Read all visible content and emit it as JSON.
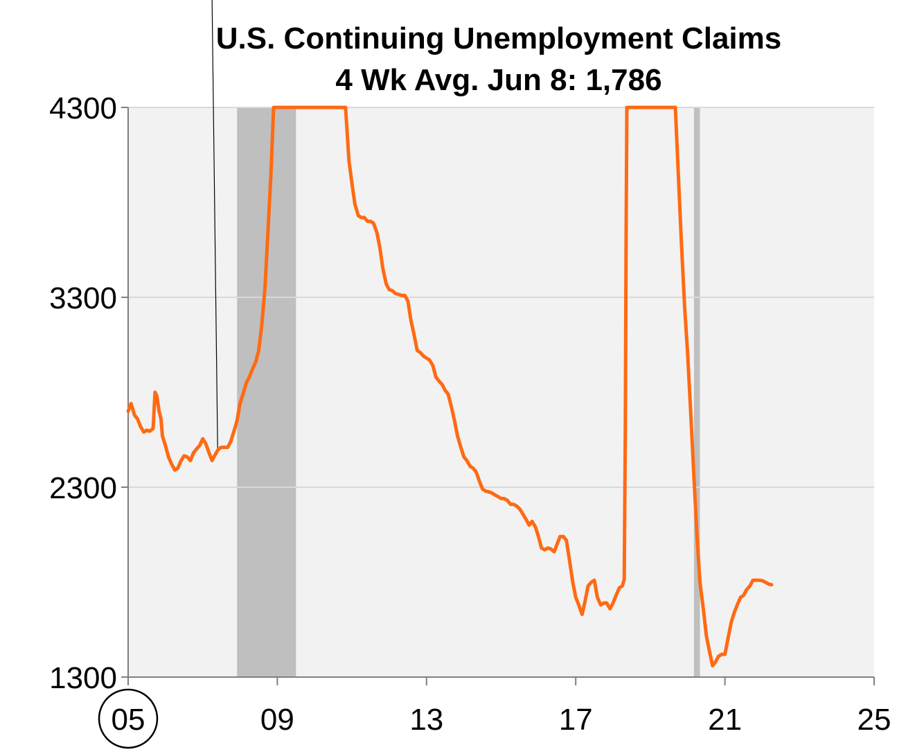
{
  "chart_data": {
    "type": "line",
    "title": "U.S. Continuing Unemployment Claims",
    "subtitle": "4 Wk Avg. Jun 8: 1,786",
    "xlabel": "",
    "ylabel": "",
    "xlim": [
      2005,
      2025
    ],
    "ylim": [
      1300,
      4300
    ],
    "x_ticks": [
      {
        "value": 2005,
        "label": "05",
        "circled": true
      },
      {
        "value": 2009,
        "label": "09"
      },
      {
        "value": 2013,
        "label": "13"
      },
      {
        "value": 2017,
        "label": "17"
      },
      {
        "value": 2021,
        "label": "21"
      },
      {
        "value": 2025,
        "label": "25"
      }
    ],
    "y_ticks": [
      {
        "value": 1300,
        "label": "1300"
      },
      {
        "value": 2300,
        "label": "2300"
      },
      {
        "value": 3300,
        "label": "3300"
      },
      {
        "value": 4300,
        "label": "4300"
      }
    ],
    "grid": true,
    "colors": {
      "line": "#ff6a13",
      "plot_background": "#f2f2f2",
      "recession": "#bfbfbf",
      "grid": "#d9d9d9",
      "axis": "#7f7f7f"
    },
    "recessions": [
      {
        "start": 2007.92,
        "end": 2009.5
      },
      {
        "start": 2020.17,
        "end": 2020.33
      }
    ],
    "annotation_line": {
      "x_top": 2007.25,
      "y_top": 4300,
      "x_bottom": 2007.4,
      "y_bottom": 2500
    },
    "series": [
      {
        "points": [
          [
            2005.0,
            2700
          ],
          [
            2005.08,
            2740
          ],
          [
            2005.17,
            2680
          ],
          [
            2005.25,
            2660
          ],
          [
            2005.33,
            2620
          ],
          [
            2005.42,
            2590
          ],
          [
            2005.5,
            2600
          ],
          [
            2005.58,
            2595
          ],
          [
            2005.67,
            2610
          ],
          [
            2005.72,
            2800
          ],
          [
            2005.77,
            2780
          ],
          [
            2005.83,
            2700
          ],
          [
            2005.88,
            2660
          ],
          [
            2005.92,
            2570
          ],
          [
            2006.0,
            2520
          ],
          [
            2006.08,
            2460
          ],
          [
            2006.17,
            2420
          ],
          [
            2006.25,
            2390
          ],
          [
            2006.33,
            2400
          ],
          [
            2006.42,
            2440
          ],
          [
            2006.5,
            2465
          ],
          [
            2006.58,
            2460
          ],
          [
            2006.67,
            2440
          ],
          [
            2006.75,
            2480
          ],
          [
            2006.83,
            2500
          ],
          [
            2006.92,
            2520
          ],
          [
            2007.0,
            2555
          ],
          [
            2007.08,
            2530
          ],
          [
            2007.17,
            2480
          ],
          [
            2007.25,
            2440
          ],
          [
            2007.33,
            2470
          ],
          [
            2007.42,
            2500
          ],
          [
            2007.5,
            2510
          ],
          [
            2007.58,
            2510
          ],
          [
            2007.67,
            2510
          ],
          [
            2007.75,
            2540
          ],
          [
            2007.83,
            2590
          ],
          [
            2007.92,
            2650
          ],
          [
            2008.0,
            2740
          ],
          [
            2008.08,
            2790
          ],
          [
            2008.17,
            2850
          ],
          [
            2008.25,
            2880
          ],
          [
            2008.33,
            2920
          ],
          [
            2008.42,
            2960
          ],
          [
            2008.5,
            3020
          ],
          [
            2008.58,
            3150
          ],
          [
            2008.67,
            3350
          ],
          [
            2008.75,
            3650
          ],
          [
            2008.83,
            3950
          ],
          [
            2008.9,
            4300
          ],
          [
            2010.83,
            4300
          ],
          [
            2010.92,
            4020
          ],
          [
            2011.0,
            3900
          ],
          [
            2011.08,
            3790
          ],
          [
            2011.17,
            3730
          ],
          [
            2011.25,
            3720
          ],
          [
            2011.33,
            3720
          ],
          [
            2011.42,
            3700
          ],
          [
            2011.5,
            3700
          ],
          [
            2011.58,
            3690
          ],
          [
            2011.67,
            3640
          ],
          [
            2011.75,
            3560
          ],
          [
            2011.83,
            3450
          ],
          [
            2011.92,
            3370
          ],
          [
            2012.0,
            3340
          ],
          [
            2012.08,
            3335
          ],
          [
            2012.17,
            3320
          ],
          [
            2012.25,
            3315
          ],
          [
            2012.33,
            3310
          ],
          [
            2012.42,
            3310
          ],
          [
            2012.5,
            3280
          ],
          [
            2012.58,
            3180
          ],
          [
            2012.67,
            3100
          ],
          [
            2012.75,
            3020
          ],
          [
            2012.83,
            3010
          ],
          [
            2012.92,
            2990
          ],
          [
            2013.0,
            2980
          ],
          [
            2013.08,
            2970
          ],
          [
            2013.17,
            2940
          ],
          [
            2013.25,
            2880
          ],
          [
            2013.33,
            2860
          ],
          [
            2013.42,
            2840
          ],
          [
            2013.5,
            2810
          ],
          [
            2013.58,
            2790
          ],
          [
            2013.67,
            2720
          ],
          [
            2013.75,
            2650
          ],
          [
            2013.83,
            2570
          ],
          [
            2013.92,
            2510
          ],
          [
            2014.0,
            2460
          ],
          [
            2014.08,
            2440
          ],
          [
            2014.17,
            2410
          ],
          [
            2014.25,
            2400
          ],
          [
            2014.33,
            2380
          ],
          [
            2014.42,
            2330
          ],
          [
            2014.5,
            2290
          ],
          [
            2014.58,
            2280
          ],
          [
            2014.67,
            2275
          ],
          [
            2014.75,
            2270
          ],
          [
            2014.83,
            2260
          ],
          [
            2014.92,
            2250
          ],
          [
            2015.0,
            2240
          ],
          [
            2015.08,
            2240
          ],
          [
            2015.17,
            2230
          ],
          [
            2015.25,
            2210
          ],
          [
            2015.33,
            2210
          ],
          [
            2015.42,
            2200
          ],
          [
            2015.5,
            2185
          ],
          [
            2015.58,
            2160
          ],
          [
            2015.67,
            2130
          ],
          [
            2015.75,
            2100
          ],
          [
            2015.83,
            2120
          ],
          [
            2015.92,
            2090
          ],
          [
            2016.0,
            2040
          ],
          [
            2016.08,
            1980
          ],
          [
            2016.17,
            1970
          ],
          [
            2016.25,
            1980
          ],
          [
            2016.33,
            1975
          ],
          [
            2016.42,
            1960
          ],
          [
            2016.5,
            2000
          ],
          [
            2016.58,
            2040
          ],
          [
            2016.67,
            2040
          ],
          [
            2016.75,
            2020
          ],
          [
            2016.83,
            1920
          ],
          [
            2016.92,
            1800
          ],
          [
            2017.0,
            1720
          ],
          [
            2017.08,
            1680
          ],
          [
            2017.17,
            1630
          ],
          [
            2017.25,
            1700
          ],
          [
            2017.33,
            1780
          ],
          [
            2017.42,
            1800
          ],
          [
            2017.5,
            1810
          ],
          [
            2017.58,
            1720
          ],
          [
            2017.67,
            1680
          ],
          [
            2017.75,
            1690
          ],
          [
            2017.83,
            1690
          ],
          [
            2017.92,
            1660
          ],
          [
            2018.0,
            1690
          ],
          [
            2018.08,
            1730
          ],
          [
            2018.17,
            1770
          ],
          [
            2018.25,
            1780
          ],
          [
            2018.3,
            1815
          ],
          [
            2018.33,
            2600
          ],
          [
            2018.35,
            3600
          ],
          [
            2018.37,
            4300
          ],
          [
            2019.67,
            4300
          ],
          [
            2019.75,
            3950
          ],
          [
            2019.83,
            3600
          ],
          [
            2019.92,
            3250
          ],
          [
            2020.0,
            3000
          ],
          [
            2020.08,
            2700
          ],
          [
            2020.17,
            2350
          ],
          [
            2020.25,
            2050
          ],
          [
            2020.33,
            1800
          ],
          [
            2020.42,
            1660
          ],
          [
            2020.5,
            1520
          ],
          [
            2020.58,
            1440
          ],
          [
            2020.67,
            1360
          ],
          [
            2020.75,
            1380
          ],
          [
            2020.83,
            1410
          ],
          [
            2020.92,
            1420
          ],
          [
            2021.0,
            1420
          ],
          [
            2021.08,
            1500
          ],
          [
            2021.17,
            1590
          ],
          [
            2021.25,
            1640
          ],
          [
            2021.33,
            1680
          ],
          [
            2021.42,
            1720
          ],
          [
            2021.5,
            1730
          ],
          [
            2021.58,
            1760
          ],
          [
            2021.67,
            1780
          ],
          [
            2021.75,
            1810
          ],
          [
            2021.83,
            1810
          ],
          [
            2021.92,
            1810
          ],
          [
            2022.0,
            1808
          ],
          [
            2022.08,
            1800
          ],
          [
            2022.17,
            1790
          ],
          [
            2022.25,
            1786
          ]
        ]
      }
    ]
  }
}
